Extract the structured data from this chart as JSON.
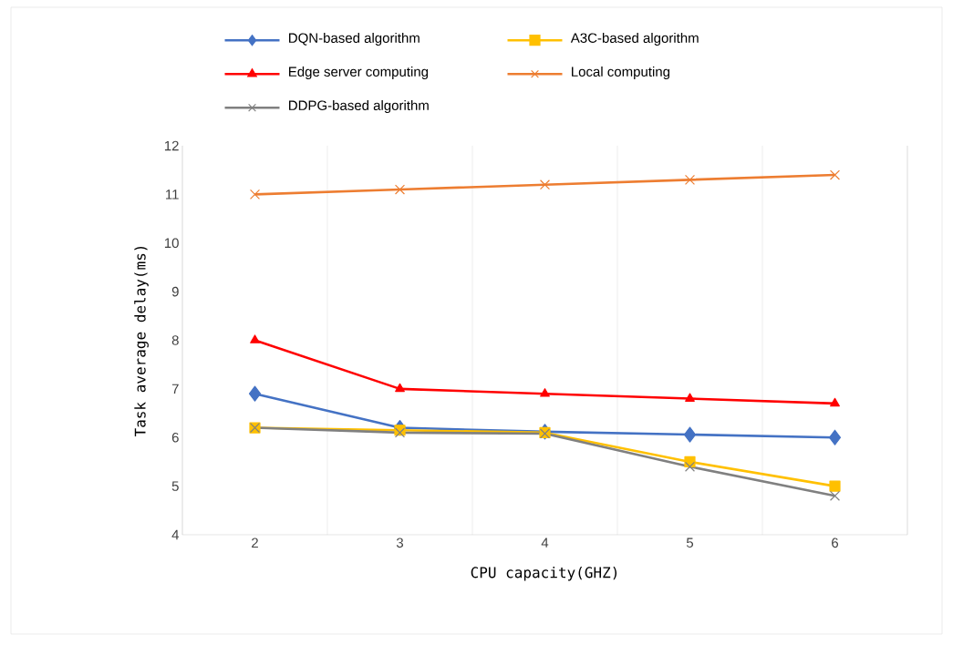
{
  "chart_data": {
    "type": "line",
    "xlabel": "CPU capacity(GHZ)",
    "ylabel": "Task average delay(ms)",
    "categories": [
      "2",
      "3",
      "4",
      "5",
      "6"
    ],
    "series": [
      {
        "name": "DQN-based algorithm",
        "color": "#4472c4",
        "marker": "diamond",
        "values": [
          6.9,
          6.2,
          6.12,
          6.06,
          6.0
        ]
      },
      {
        "name": "A3C-based algorithm",
        "color": "#ffc000",
        "marker": "square",
        "values": [
          6.2,
          6.15,
          6.1,
          5.5,
          5.0
        ]
      },
      {
        "name": "Edge server computing",
        "color": "#ff0000",
        "marker": "triangle",
        "values": [
          8.0,
          7.0,
          6.9,
          6.8,
          6.7
        ]
      },
      {
        "name": "Local computing",
        "color": "#ed7d31",
        "marker": "cross",
        "values": [
          11.0,
          11.1,
          11.2,
          11.3,
          11.4
        ]
      },
      {
        "name": "DDPG-based algorithm",
        "color": "#808080",
        "marker": "cross",
        "values": [
          6.2,
          6.1,
          6.08,
          5.4,
          4.8
        ]
      }
    ],
    "ylim": [
      4,
      12
    ],
    "yticks": [
      4,
      5,
      6,
      7,
      8,
      9,
      10,
      11,
      12
    ],
    "grid": "x",
    "legend": "top",
    "line_style": "solid"
  }
}
